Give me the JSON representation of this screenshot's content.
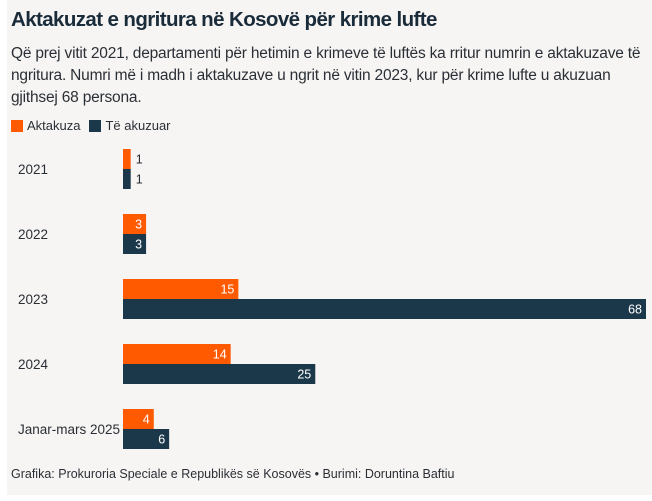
{
  "title": "Aktakuzat e ngritura në Kosovë për krime lufte",
  "subtitle": "Që prej vitit 2021, departamenti për hetimin e krimeve të luftës ka rritur numrin e aktakuzave të ngritura. Numri më i madh i aktakuzave u ngrit në vitin 2023, kur për krime lufte u akuzuan gjithsej 68 persona.",
  "footer": "Grafika: Prokuroria Speciale e Republikës së Kosovës • Burimi: Doruntina Baftiu",
  "colors": {
    "aktakuza": "#ff5a00",
    "akuzuar": "#1b384a",
    "background": "#f7f5f4",
    "text": "#2a2f35"
  },
  "chart_data": {
    "type": "bar",
    "orientation": "horizontal",
    "title": "Aktakuzat e ngritura në Kosovë për krime lufte",
    "xlabel": "",
    "ylabel": "",
    "xlim": [
      0,
      68
    ],
    "grid": false,
    "legend_position": "top-left",
    "categories": [
      "2021",
      "2022",
      "2023",
      "2024",
      "Janar-mars 2025"
    ],
    "series": [
      {
        "name": "Aktakuza",
        "color": "#ff5a00",
        "values": [
          1,
          3,
          15,
          14,
          4
        ]
      },
      {
        "name": "Të akuzuar",
        "color": "#1b384a",
        "values": [
          1,
          3,
          68,
          25,
          6
        ]
      }
    ]
  }
}
